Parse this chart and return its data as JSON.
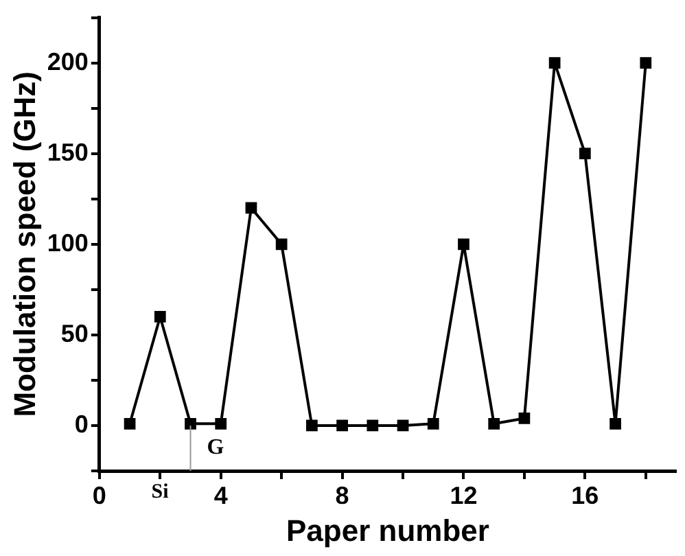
{
  "chart_data": {
    "type": "line",
    "xlabel": "Paper number",
    "ylabel": "Modulation speed (GHz)",
    "x": [
      1,
      2,
      3,
      4,
      5,
      6,
      7,
      8,
      9,
      10,
      11,
      12,
      13,
      14,
      15,
      16,
      17,
      18
    ],
    "series": [
      {
        "color": "#000000",
        "values": [
          1,
          60,
          1,
          1,
          120,
          100,
          0,
          0,
          0,
          0,
          1,
          100,
          1,
          4,
          200,
          150,
          1,
          200
        ]
      }
    ],
    "xlim": [
      0,
      19
    ],
    "xticks": [
      0,
      {
        "value": 2,
        "label": null
      },
      4,
      {
        "value": 6,
        "label": null
      },
      8,
      {
        "value": 10,
        "label": null
      },
      12,
      {
        "value": 14,
        "label": null
      },
      16,
      {
        "value": 18,
        "label": null
      }
    ],
    "ylim": [
      -25,
      225
    ],
    "yticks": [
      {
        "value": -25,
        "label": null
      },
      0,
      {
        "value": 25,
        "label": null
      },
      50,
      {
        "value": 75,
        "label": null
      },
      100,
      {
        "value": 125,
        "label": null
      },
      150,
      {
        "value": 175,
        "label": null
      },
      200,
      {
        "value": 225,
        "label": null
      }
    ],
    "marker": "square",
    "line_style": "solid",
    "grid": false,
    "legend": false,
    "ref_lines": [
      {
        "axis": "x",
        "value": 3,
        "label": "G",
        "color": "#999999"
      }
    ],
    "annotations": [
      "Si"
    ]
  }
}
